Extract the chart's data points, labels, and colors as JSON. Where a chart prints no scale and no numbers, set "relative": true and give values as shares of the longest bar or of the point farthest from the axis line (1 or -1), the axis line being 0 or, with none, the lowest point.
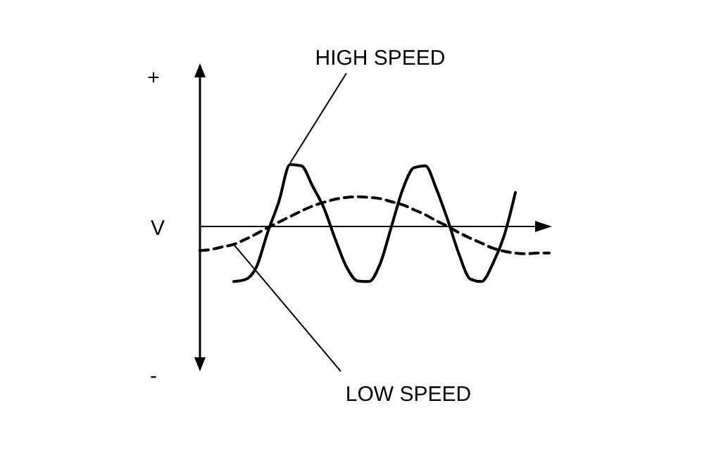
{
  "chart_data": {
    "type": "line",
    "relative": true,
    "ylabel": "V",
    "annotations": [
      "+",
      "-"
    ],
    "legend": false,
    "categories": [
      null,
      null,
      null,
      null,
      null,
      null,
      null,
      null,
      null,
      null,
      null,
      null,
      null,
      null,
      null,
      null,
      null,
      null,
      null,
      null,
      null,
      null,
      null,
      null,
      null,
      null,
      null,
      null,
      null,
      null,
      null,
      null
    ],
    "series": [
      {
        "name": "HIGH SPEED",
        "color": "#000000",
        "line_style": "solid",
        "values": [
          null,
          null,
          null,
          -0.89,
          -0.86,
          -0.66,
          -0.1,
          0.4,
          1.0,
          0.98,
          0.65,
          0.3,
          -0.2,
          -0.65,
          -0.88,
          -0.89,
          -0.6,
          0.0,
          0.6,
          0.95,
          0.98,
          0.6,
          0.1,
          -0.45,
          -0.85,
          -0.89,
          -0.6,
          -0.15,
          0.55,
          null,
          null,
          null
        ]
      },
      {
        "name": "LOW SPEED",
        "color": "#000000",
        "line_style": "dashed",
        "values": [
          -0.39,
          -0.37,
          -0.33,
          -0.29,
          -0.21,
          -0.12,
          -0.02,
          0.07,
          0.16,
          0.25,
          0.33,
          0.39,
          0.44,
          0.47,
          0.48,
          0.47,
          0.45,
          0.4,
          0.35,
          0.27,
          0.19,
          0.09,
          0,
          -0.1,
          -0.19,
          -0.27,
          -0.35,
          -0.4,
          -0.43,
          -0.44,
          -0.43,
          -0.43
        ]
      }
    ]
  }
}
